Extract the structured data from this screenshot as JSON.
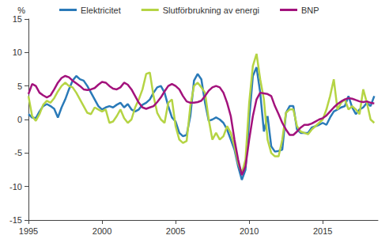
{
  "chart_data": {
    "type": "line",
    "y_label": "%",
    "x": [
      1995,
      1995.25,
      1995.5,
      1995.75,
      1996,
      1996.25,
      1996.5,
      1996.75,
      1997,
      1997.25,
      1997.5,
      1997.75,
      1998,
      1998.25,
      1998.5,
      1998.75,
      1999,
      1999.25,
      1999.5,
      1999.75,
      2000,
      2000.25,
      2000.5,
      2000.75,
      2001,
      2001.25,
      2001.5,
      2001.75,
      2002,
      2002.25,
      2002.5,
      2002.75,
      2003,
      2003.25,
      2003.5,
      2003.75,
      2004,
      2004.25,
      2004.5,
      2004.75,
      2005,
      2005.25,
      2005.5,
      2005.75,
      2006,
      2006.25,
      2006.5,
      2006.75,
      2007,
      2007.25,
      2007.5,
      2007.75,
      2008,
      2008.25,
      2008.5,
      2008.75,
      2009,
      2009.25,
      2009.5,
      2009.75,
      2010,
      2010.25,
      2010.5,
      2010.75,
      2011,
      2011.25,
      2011.5,
      2011.75,
      2012,
      2012.25,
      2012.5,
      2012.75,
      2013,
      2013.25,
      2013.5,
      2013.75,
      2014,
      2014.25,
      2014.5,
      2014.75,
      2015,
      2015.25,
      2015.5,
      2015.75,
      2016,
      2016.25,
      2016.5,
      2016.75,
      2017,
      2017.25,
      2017.5,
      2017.75,
      2018,
      2018.25,
      2018.5
    ],
    "xlim": [
      1995,
      2018.75
    ],
    "xticks": [
      1995,
      2000,
      2005,
      2010,
      2015
    ],
    "ylim": [
      -15,
      15
    ],
    "yticks": [
      -15,
      -10,
      -5,
      0,
      5,
      10,
      15
    ],
    "grid": false,
    "legend": "top",
    "series": [
      {
        "name": "Elektricitet",
        "color": "#2a7ab8",
        "values": [
          0.8,
          0.3,
          0.2,
          1.2,
          2.0,
          2.3,
          2.0,
          1.6,
          0.3,
          1.8,
          3.0,
          4.5,
          5.8,
          6.5,
          6.0,
          5.8,
          5.0,
          4.0,
          3.0,
          2.0,
          1.5,
          1.8,
          2.0,
          1.8,
          2.2,
          2.5,
          1.8,
          2.3,
          1.5,
          1.2,
          1.5,
          2.2,
          2.5,
          3.0,
          4.0,
          4.8,
          5.0,
          4.0,
          2.0,
          0.3,
          -0.3,
          -2.0,
          -2.5,
          -2.3,
          0.5,
          5.8,
          6.8,
          6.0,
          2.5,
          -0.2,
          0.0,
          0.3,
          0.0,
          -0.5,
          -1.5,
          -3.0,
          -4.5,
          -7.0,
          -9.0,
          -7.5,
          0.0,
          6.5,
          7.8,
          4.0,
          -1.8,
          0.5,
          -4.0,
          -4.8,
          -4.7,
          -4.5,
          1.0,
          2.0,
          2.0,
          -1.5,
          -2.0,
          -2.0,
          -2.0,
          -1.2,
          -1.0,
          -0.8,
          -0.5,
          -0.8,
          0.3,
          1.2,
          1.5,
          1.8,
          2.0,
          3.5,
          1.8,
          0.8,
          1.5,
          1.8,
          2.5,
          2.0,
          3.5
        ]
      },
      {
        "name": "Slutförbrukning av energi",
        "color": "#b5d444",
        "values": [
          3.5,
          0.5,
          -0.2,
          0.8,
          2.2,
          2.8,
          2.5,
          3.2,
          4.2,
          5.0,
          5.5,
          5.0,
          4.8,
          4.0,
          3.0,
          2.0,
          1.0,
          0.8,
          1.8,
          1.5,
          1.2,
          1.5,
          -0.5,
          -0.3,
          0.5,
          1.5,
          0.2,
          -0.5,
          0.0,
          1.8,
          3.0,
          4.5,
          6.8,
          7.0,
          3.5,
          1.0,
          0.0,
          -0.5,
          2.5,
          3.0,
          -1.0,
          -3.0,
          -3.5,
          -3.2,
          2.0,
          5.0,
          5.5,
          4.8,
          4.0,
          0.0,
          -3.0,
          -2.0,
          -3.0,
          -2.5,
          -1.0,
          -2.0,
          -4.0,
          -6.5,
          -8.0,
          -6.0,
          2.5,
          8.0,
          9.8,
          6.0,
          3.0,
          -3.0,
          -5.0,
          -5.5,
          -5.5,
          -3.0,
          1.0,
          1.5,
          1.5,
          -1.0,
          -1.8,
          -2.0,
          -2.2,
          -1.5,
          -1.0,
          -0.5,
          0.0,
          1.5,
          3.5,
          6.0,
          1.5,
          2.5,
          3.0,
          1.5,
          2.0,
          1.5,
          0.8,
          4.5,
          2.5,
          0.0,
          -0.5
        ]
      },
      {
        "name": "BNP",
        "color": "#a3127c",
        "values": [
          3.8,
          5.3,
          5.0,
          4.0,
          3.6,
          3.3,
          3.6,
          4.5,
          5.5,
          6.2,
          6.5,
          6.3,
          5.8,
          5.4,
          5.0,
          4.5,
          4.4,
          4.5,
          4.7,
          5.2,
          5.6,
          5.5,
          5.0,
          4.6,
          4.5,
          4.8,
          5.5,
          5.2,
          4.5,
          3.5,
          2.5,
          1.8,
          1.6,
          1.8,
          2.0,
          2.6,
          3.3,
          4.2,
          5.0,
          5.3,
          5.0,
          4.5,
          3.5,
          2.7,
          2.5,
          2.5,
          2.6,
          2.8,
          3.5,
          4.3,
          4.8,
          5.0,
          4.8,
          4.0,
          2.5,
          0.5,
          -3.0,
          -6.0,
          -8.3,
          -7.0,
          -3.0,
          0.5,
          3.0,
          4.0,
          3.9,
          3.8,
          3.5,
          2.0,
          0.8,
          -0.5,
          -1.5,
          -2.3,
          -2.3,
          -1.8,
          -1.2,
          -0.8,
          -0.8,
          -0.6,
          -0.3,
          0.0,
          0.2,
          0.6,
          1.2,
          1.8,
          2.3,
          2.7,
          3.0,
          3.2,
          3.1,
          2.9,
          2.7,
          2.6,
          2.7,
          2.5,
          2.4
        ]
      }
    ]
  }
}
